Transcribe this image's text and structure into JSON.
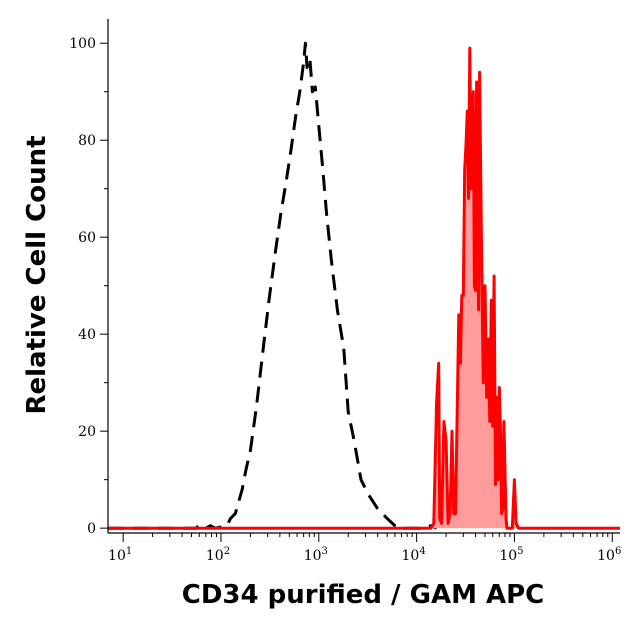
{
  "chart_data": {
    "type": "area",
    "xlabel": "CD34 purified / GAM APC",
    "ylabel": "Relative Cell Count",
    "xscale": "log",
    "xlim": [
      7,
      1200000
    ],
    "ylim": [
      -1,
      105
    ],
    "grid": false,
    "legend": "none",
    "x_ticks": [
      {
        "base": "10",
        "exp": "1",
        "value": 10
      },
      {
        "base": "10",
        "exp": "2",
        "value": 100
      },
      {
        "base": "10",
        "exp": "3",
        "value": 1000
      },
      {
        "base": "10",
        "exp": "4",
        "value": 10000
      },
      {
        "base": "10",
        "exp": "5",
        "value": 100000
      },
      {
        "base": "10",
        "exp": "6",
        "value": 1000000
      }
    ],
    "y_ticks": [
      "0",
      "20",
      "40",
      "60",
      "80",
      "100"
    ],
    "series": [
      {
        "style": "dashed",
        "color": "#000000",
        "fill": "none",
        "points": [
          [
            7,
            0
          ],
          [
            55,
            0
          ],
          [
            60,
            0.5
          ],
          [
            70,
            0
          ],
          [
            78,
            0.5
          ],
          [
            88,
            0
          ],
          [
            115,
            0.5
          ],
          [
            125,
            2
          ],
          [
            140,
            3
          ],
          [
            165,
            8
          ],
          [
            180,
            12
          ],
          [
            200,
            16
          ],
          [
            230,
            25
          ],
          [
            270,
            37
          ],
          [
            310,
            47
          ],
          [
            360,
            57
          ],
          [
            410,
            65
          ],
          [
            460,
            71
          ],
          [
            520,
            78
          ],
          [
            580,
            85
          ],
          [
            640,
            90
          ],
          [
            700,
            96
          ],
          [
            730,
            100
          ],
          [
            760,
            95
          ],
          [
            810,
            97
          ],
          [
            860,
            90
          ],
          [
            920,
            91
          ],
          [
            1000,
            83
          ],
          [
            1100,
            74
          ],
          [
            1200,
            65
          ],
          [
            1350,
            55
          ],
          [
            1550,
            45
          ],
          [
            1800,
            37
          ],
          [
            2000,
            24
          ],
          [
            2300,
            18
          ],
          [
            2700,
            10
          ],
          [
            3200,
            7
          ],
          [
            4000,
            4
          ],
          [
            5000,
            2
          ],
          [
            6000,
            0.5
          ],
          [
            7000,
            0
          ],
          [
            12000,
            0
          ],
          [
            14000,
            0.5
          ],
          [
            16000,
            0
          ]
        ]
      },
      {
        "style": "solid",
        "color": "#ff0000",
        "fill": "#ff9b9b",
        "points": [
          [
            7,
            0
          ],
          [
            14000,
            0
          ],
          [
            15000,
            1
          ],
          [
            16000,
            26
          ],
          [
            16800,
            34
          ],
          [
            17200,
            2
          ],
          [
            18000,
            1
          ],
          [
            19000,
            22
          ],
          [
            20000,
            18
          ],
          [
            21000,
            1
          ],
          [
            22000,
            3
          ],
          [
            23000,
            20
          ],
          [
            24000,
            3
          ],
          [
            25000,
            3
          ],
          [
            26000,
            24
          ],
          [
            27000,
            44
          ],
          [
            28000,
            34
          ],
          [
            29000,
            48
          ],
          [
            30000,
            48
          ],
          [
            31000,
            74
          ],
          [
            32000,
            79
          ],
          [
            33000,
            86
          ],
          [
            34000,
            68
          ],
          [
            35000,
            99
          ],
          [
            36000,
            70
          ],
          [
            37000,
            86
          ],
          [
            38000,
            90
          ],
          [
            39000,
            50
          ],
          [
            40000,
            49
          ],
          [
            41000,
            92
          ],
          [
            42000,
            57
          ],
          [
            43000,
            45
          ],
          [
            44000,
            94
          ],
          [
            46000,
            60
          ],
          [
            48000,
            30
          ],
          [
            50000,
            50
          ],
          [
            52000,
            27
          ],
          [
            54000,
            39
          ],
          [
            56000,
            22
          ],
          [
            58000,
            47
          ],
          [
            60000,
            21
          ],
          [
            62000,
            52
          ],
          [
            64000,
            9
          ],
          [
            66000,
            27
          ],
          [
            68000,
            10
          ],
          [
            70000,
            29
          ],
          [
            72000,
            20
          ],
          [
            74000,
            3
          ],
          [
            76000,
            4
          ],
          [
            78000,
            22
          ],
          [
            80000,
            12
          ],
          [
            82000,
            2
          ],
          [
            84000,
            0
          ],
          [
            95000,
            0
          ],
          [
            100000,
            10
          ],
          [
            104000,
            1
          ],
          [
            110000,
            0
          ],
          [
            1200000,
            0
          ]
        ]
      }
    ]
  }
}
